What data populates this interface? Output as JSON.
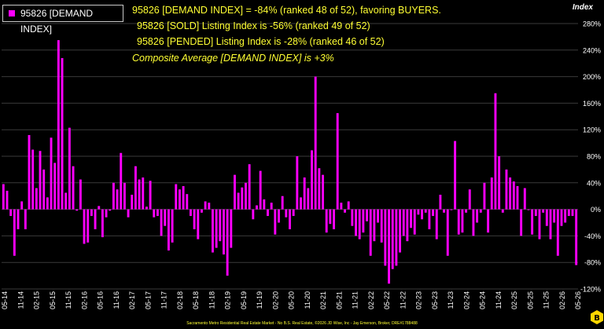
{
  "legend": {
    "label": "95826 [DEMAND INDEX]",
    "color": "#ff00ff"
  },
  "notes": {
    "line1": "95826 [DEMAND INDEX] = -84% (ranked 48 of 52), favoring BUYERS.",
    "line2": "95826 [SOLD] Listing Index is -56% (ranked 49 of 52)",
    "line3": "95826 [PENDED] Listing Index is -28% (ranked 46 of 52)",
    "line4": "Composite Average [DEMAND INDEX] is +3%"
  },
  "footer": "Sacramento Metro Residential Real Estate Market - No B.S. Real Estate, ©2026 JD Wise, Inc - Jay Emerson, Broker, DRE#1788488",
  "colors": {
    "bar": "#ff00ff",
    "text_accent": "#ffff33",
    "background": "#000000",
    "grid": "#3a3a3a"
  },
  "chart_data": {
    "type": "bar",
    "title": "",
    "ylabel": "Index",
    "ylim": [
      -120,
      280
    ],
    "y_ticks": [
      -120,
      -80,
      -40,
      0,
      40,
      80,
      120,
      160,
      200,
      240,
      280
    ],
    "y_tick_format": "percent",
    "y_axis_side": "right",
    "grid": true,
    "x_tick_labels": [
      "05-14",
      "11-14",
      "02-15",
      "05-15",
      "11-15",
      "02-16",
      "05-16",
      "11-16",
      "02-17",
      "05-17",
      "11-17",
      "02-18",
      "05-18",
      "11-18",
      "02-19",
      "05-19",
      "11-19",
      "02-20",
      "05-20",
      "11-20",
      "02-21",
      "05-21",
      "11-21",
      "02-22",
      "05-22",
      "11-22",
      "02-23",
      "05-23",
      "11-23",
      "02-24",
      "05-24",
      "11-24",
      "02-25",
      "05-25",
      "11-25",
      "02-26",
      "05-26"
    ],
    "series": [
      {
        "name": "95826 [DEMAND INDEX]",
        "values": [
          38,
          28,
          -10,
          -70,
          -30,
          12,
          -30,
          112,
          90,
          32,
          88,
          60,
          18,
          108,
          70,
          255,
          228,
          25,
          123,
          65,
          -2,
          45,
          -52,
          -50,
          -10,
          -30,
          5,
          -42,
          -12,
          -2,
          40,
          30,
          85,
          40,
          -12,
          22,
          65,
          45,
          48,
          4,
          43,
          -12,
          -10,
          -40,
          -25,
          -62,
          -50,
          38,
          30,
          35,
          23,
          -10,
          -30,
          -45,
          -5,
          12,
          10,
          -65,
          -58,
          -48,
          -68,
          -100,
          -58,
          52,
          25,
          33,
          40,
          68,
          -15,
          6,
          58,
          15,
          -10,
          10,
          -38,
          -20,
          20,
          -12,
          -30,
          -10,
          80,
          18,
          48,
          32,
          89,
          200,
          62,
          52,
          -35,
          -22,
          -30,
          145,
          10,
          -5,
          12,
          -25,
          -40,
          -45,
          -35,
          -18,
          -70,
          -48,
          -20,
          -50,
          -85,
          -112,
          -90,
          -85,
          -65,
          -40,
          -48,
          -28,
          -38,
          -8,
          -15,
          -5,
          -30,
          -10,
          -45,
          22,
          -5,
          -70,
          0,
          103,
          -38,
          -35,
          -5,
          30,
          -40,
          -20,
          -5,
          40,
          -35,
          48,
          175,
          80,
          -5,
          60,
          48,
          42,
          35,
          -40,
          32,
          0,
          -38,
          -10,
          -45,
          -5,
          -25,
          -45,
          -20,
          -70,
          -25,
          -20,
          -10,
          -10,
          -84
        ]
      }
    ]
  }
}
